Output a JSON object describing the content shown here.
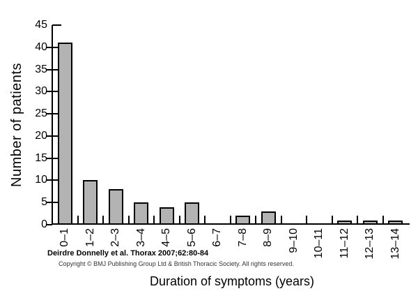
{
  "figure": {
    "citation": "Deirdre Donnelly et al. Thorax 2007;62:80-84",
    "copyright": "Copyright © BMJ Publishing Group Ltd & British Thoracic Society. All rights reserved."
  },
  "chart_data": {
    "type": "bar",
    "title": "",
    "xlabel": "Duration of symptoms (years)",
    "ylabel": "Number of patients",
    "categories": [
      "0–1",
      "1–2",
      "2–3",
      "3–4",
      "4–5",
      "5–6",
      "6–7",
      "7–8",
      "8–9",
      "9–10",
      "10–11",
      "11–12",
      "12–13",
      "13–14"
    ],
    "values": [
      41,
      10,
      8,
      5,
      4,
      5,
      0,
      2,
      3,
      0,
      0,
      1,
      1,
      1
    ],
    "ylim": [
      0,
      45
    ],
    "yticks": [
      0,
      5,
      10,
      15,
      20,
      25,
      30,
      35,
      40,
      45
    ],
    "bar_color": "#b3b3b3",
    "bar_border_color": "#000000",
    "axis_color": "#000000",
    "grid": false,
    "legend_position": "none"
  }
}
